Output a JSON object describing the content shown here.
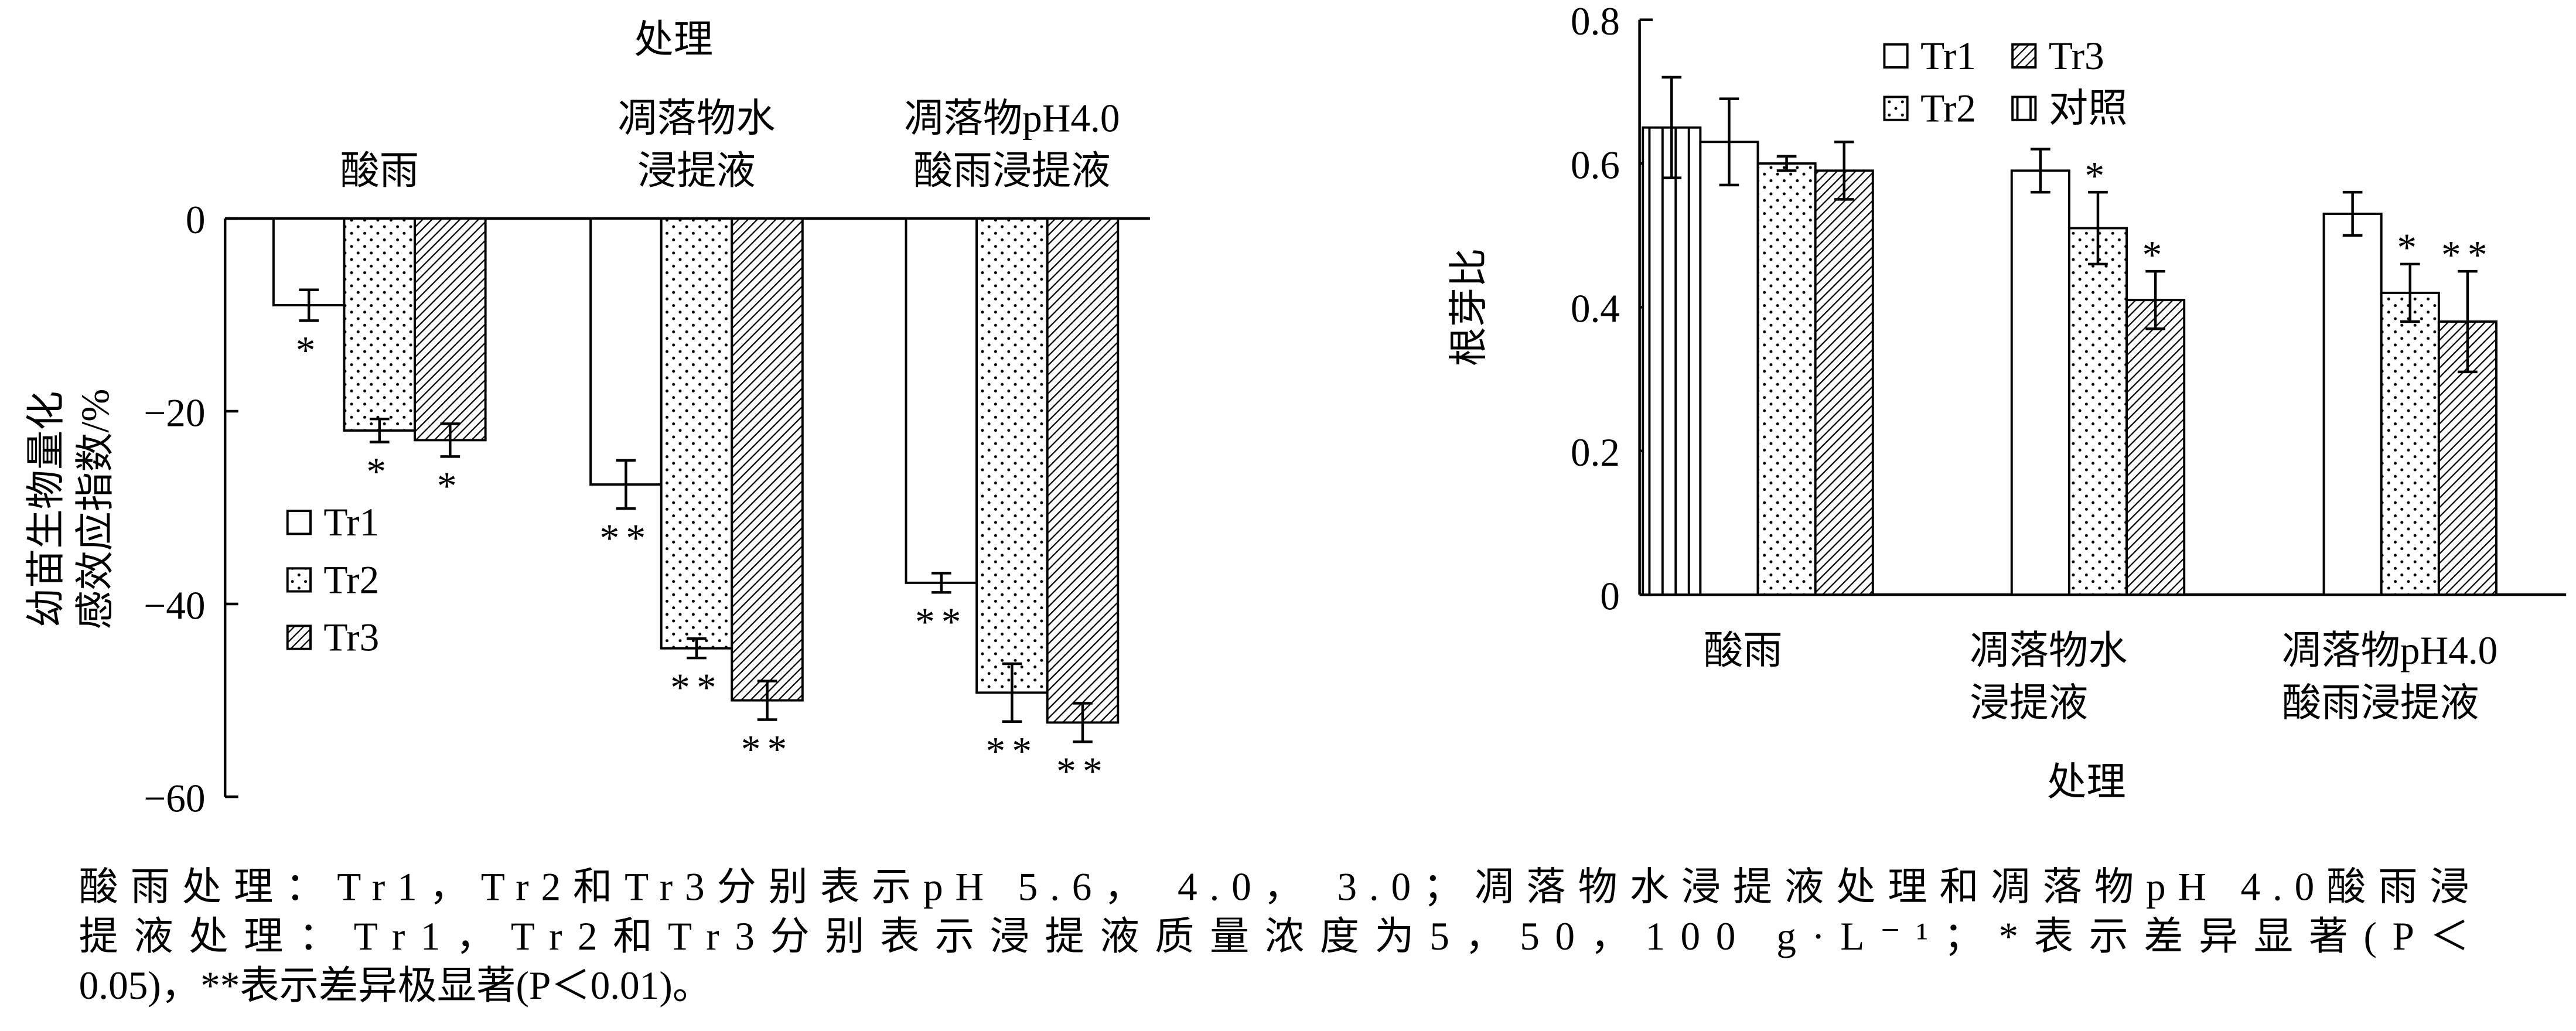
{
  "chart_data": [
    {
      "type": "bar",
      "title": "处理",
      "ylabel": [
        "幼苗生物量化",
        "感效应指数/%"
      ],
      "categories": [
        "酸雨",
        "凋落物水\n浸提液",
        "凋落物pH4.0\n酸雨浸提液"
      ],
      "ylim": [
        0,
        -60
      ],
      "yticks": [
        0,
        {
          "value": -20,
          "label": "−20"
        },
        {
          "value": -40,
          "label": "−40"
        },
        {
          "value": -60,
          "label": "−60"
        }
      ],
      "grid": false,
      "legend": "left",
      "series": [
        {
          "name": "Tr1",
          "color": "#ffffff",
          "pattern": "none",
          "values": [
            -9,
            -27.6,
            -37.8
          ],
          "errors": [
            1.6,
            2.5,
            1.0
          ],
          "significance": [
            "*",
            "**",
            "**"
          ]
        },
        {
          "name": "Tr2",
          "color": "#ffffff",
          "pattern": "dots",
          "values": [
            -22,
            -44.6,
            -49.2
          ],
          "errors": [
            1.2,
            1.0,
            3.0
          ],
          "significance": [
            "*",
            "**",
            "**"
          ]
        },
        {
          "name": "Tr3",
          "color": "#ffffff",
          "pattern": "hatch",
          "values": [
            -23,
            -50,
            -52.3
          ],
          "errors": [
            1.7,
            2.0,
            2.0
          ],
          "significance": [
            "*",
            "**",
            "**"
          ]
        }
      ]
    },
    {
      "type": "bar",
      "xlabel": "处理",
      "ylabel": [
        "根芽比"
      ],
      "categories": [
        "酸雨",
        "凋落物水\n浸提液",
        "凋落物pH4.0\n酸雨浸提液"
      ],
      "ylim": [
        0,
        0.8
      ],
      "yticks": [
        0,
        0.2,
        0.4,
        0.6,
        0.8
      ],
      "grid": false,
      "legend": "top",
      "series": [
        {
          "name": "对照",
          "color": "#ffffff",
          "pattern": "vlines",
          "values": [
            0.65,
            null,
            null
          ],
          "errors": [
            0.07,
            null,
            null
          ],
          "significance": [
            null,
            null,
            null
          ]
        },
        {
          "name": "Tr1",
          "color": "#ffffff",
          "pattern": "none",
          "values": [
            0.63,
            0.59,
            0.53
          ],
          "errors": [
            0.06,
            0.03,
            0.03
          ],
          "significance": [
            null,
            null,
            null
          ]
        },
        {
          "name": "Tr2",
          "color": "#ffffff",
          "pattern": "dots",
          "values": [
            0.6,
            0.51,
            0.42
          ],
          "errors": [
            0.01,
            0.05,
            0.04
          ],
          "significance": [
            null,
            "*",
            "*"
          ]
        },
        {
          "name": "Tr3",
          "color": "#ffffff",
          "pattern": "hatch",
          "values": [
            0.59,
            0.41,
            0.38
          ],
          "errors": [
            0.04,
            0.04,
            0.07
          ],
          "significance": [
            null,
            "*",
            "**"
          ]
        }
      ]
    }
  ],
  "caption": {
    "lines": [
      "酸雨处理：Tr1，Tr2和Tr3分别表示pH 5.6， 4.0， 3.0；凋落物水浸提液处理和凋落物pH 4.0酸雨浸",
      "提液处理：Tr1，Tr2和Tr3分别表示浸提液质量浓度为5，50，100 g·L⁻¹；*表示差异显著(P＜",
      "0.05)，**表示差异极显著(P＜0.01)。"
    ]
  }
}
